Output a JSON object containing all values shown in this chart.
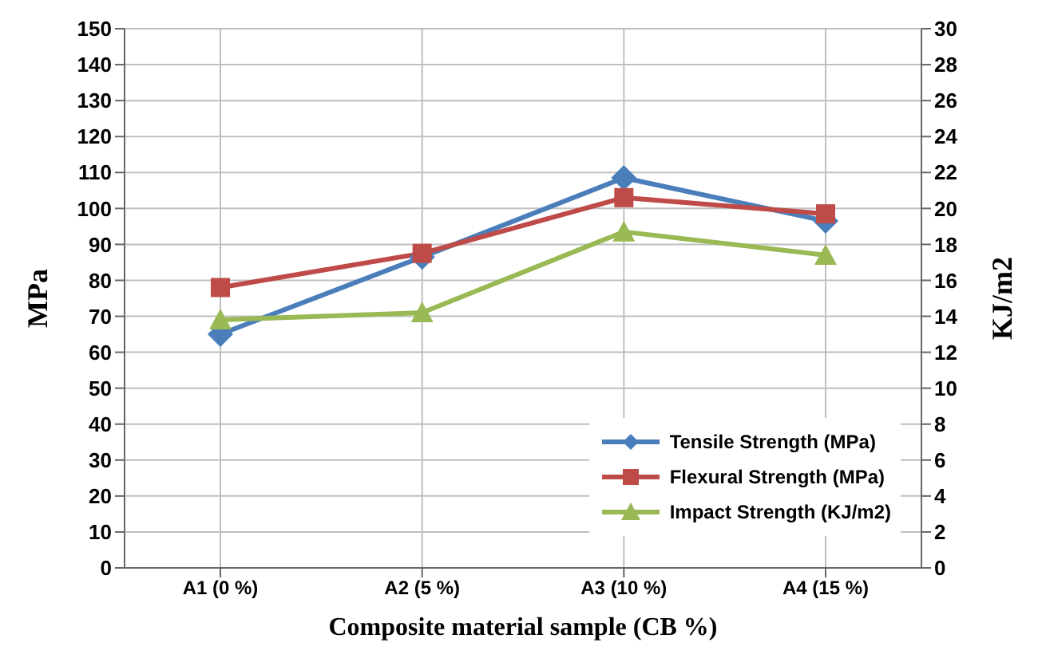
{
  "chart_data": {
    "type": "line",
    "xlabel": "Composite material sample (CB %)",
    "ylabel": "MPa",
    "y2label": "KJ/m2",
    "categories": [
      "A1 (0 %)",
      "A2 (5 %)",
      "A3 (10 %)",
      "A4 (15 %)"
    ],
    "series": [
      {
        "name": "Tensile Strength (MPa)",
        "color": "#4a7ebb",
        "values": [
          65,
          86.5,
          108.5,
          96.5
        ],
        "marker": "diamond"
      },
      {
        "name": "Flexural Strength (MPa)",
        "color": "#be4b48",
        "values": [
          78,
          87.5,
          103,
          98.5
        ],
        "marker": "square"
      },
      {
        "name": "Impact Strength (KJ/m2)",
        "color": "#98b954",
        "values": [
          13.8,
          14.2,
          18.7,
          17.4
        ],
        "marker": "triangle",
        "axis": "y2"
      }
    ],
    "ylim": [
      0,
      150
    ],
    "yticks": [
      0,
      10,
      20,
      30,
      40,
      50,
      60,
      70,
      80,
      90,
      100,
      110,
      120,
      130,
      140,
      150
    ],
    "y2lim": [
      0,
      30
    ],
    "y2ticks": [
      0,
      2,
      4,
      6,
      8,
      10,
      12,
      14,
      16,
      18,
      20,
      22,
      24,
      26,
      28,
      30
    ],
    "grid": true,
    "legend": "bottom right"
  }
}
